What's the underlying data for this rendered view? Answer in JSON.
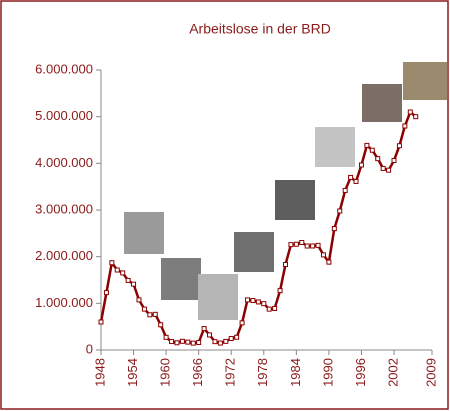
{
  "chart_data": {
    "type": "line",
    "title": "Arbeitslose in der BRD",
    "x": [
      1948,
      1949,
      1950,
      1951,
      1952,
      1953,
      1954,
      1955,
      1956,
      1957,
      1958,
      1959,
      1960,
      1961,
      1962,
      1963,
      1964,
      1965,
      1966,
      1967,
      1968,
      1969,
      1970,
      1971,
      1972,
      1973,
      1974,
      1975,
      1976,
      1977,
      1978,
      1979,
      1980,
      1981,
      1982,
      1983,
      1984,
      1985,
      1986,
      1987,
      1988,
      1989,
      1990,
      1991,
      1992,
      1993,
      1994,
      1995,
      1996,
      1997,
      1998,
      1999,
      2000,
      2001,
      2002,
      2003,
      2004,
      2005,
      2006
    ],
    "series": [
      {
        "color": "#8b0000",
        "values": [
          600000,
          1230000,
          1870000,
          1714000,
          1652000,
          1491000,
          1411000,
          1074000,
          876000,
          754000,
          764000,
          540000,
          271000,
          181000,
          155000,
          186000,
          169000,
          147000,
          161000,
          459000,
          323000,
          179000,
          149000,
          185000,
          246000,
          273000,
          582000,
          1074000,
          1060000,
          1030000,
          993000,
          876000,
          889000,
          1272000,
          1833000,
          2258000,
          2266000,
          2304000,
          2228000,
          2229000,
          2242000,
          2038000,
          1883000,
          2602000,
          2979000,
          3419000,
          3698000,
          3612000,
          3965000,
          4384000,
          4281000,
          4100000,
          3890000,
          3853000,
          4061000,
          4377000,
          4800000,
          5100000,
          5000000
        ]
      }
    ],
    "xlim": [
      1948,
      2009
    ],
    "xticks": [
      1948,
      1954,
      1960,
      1966,
      1972,
      1978,
      1984,
      1990,
      1996,
      2002,
      2009
    ],
    "ylim": [
      0,
      6000000
    ],
    "yticks": [
      0,
      {
        "value": 1000000,
        "label": "1.000.000"
      },
      {
        "value": 2000000,
        "label": "2.000.000"
      },
      {
        "value": 3000000,
        "label": "3.000.000"
      },
      {
        "value": 4000000,
        "label": "4.000.000"
      },
      {
        "value": 5000000,
        "label": "5.000.000"
      },
      {
        "value": 6000000,
        "label": "6.000.000"
      }
    ]
  }
}
